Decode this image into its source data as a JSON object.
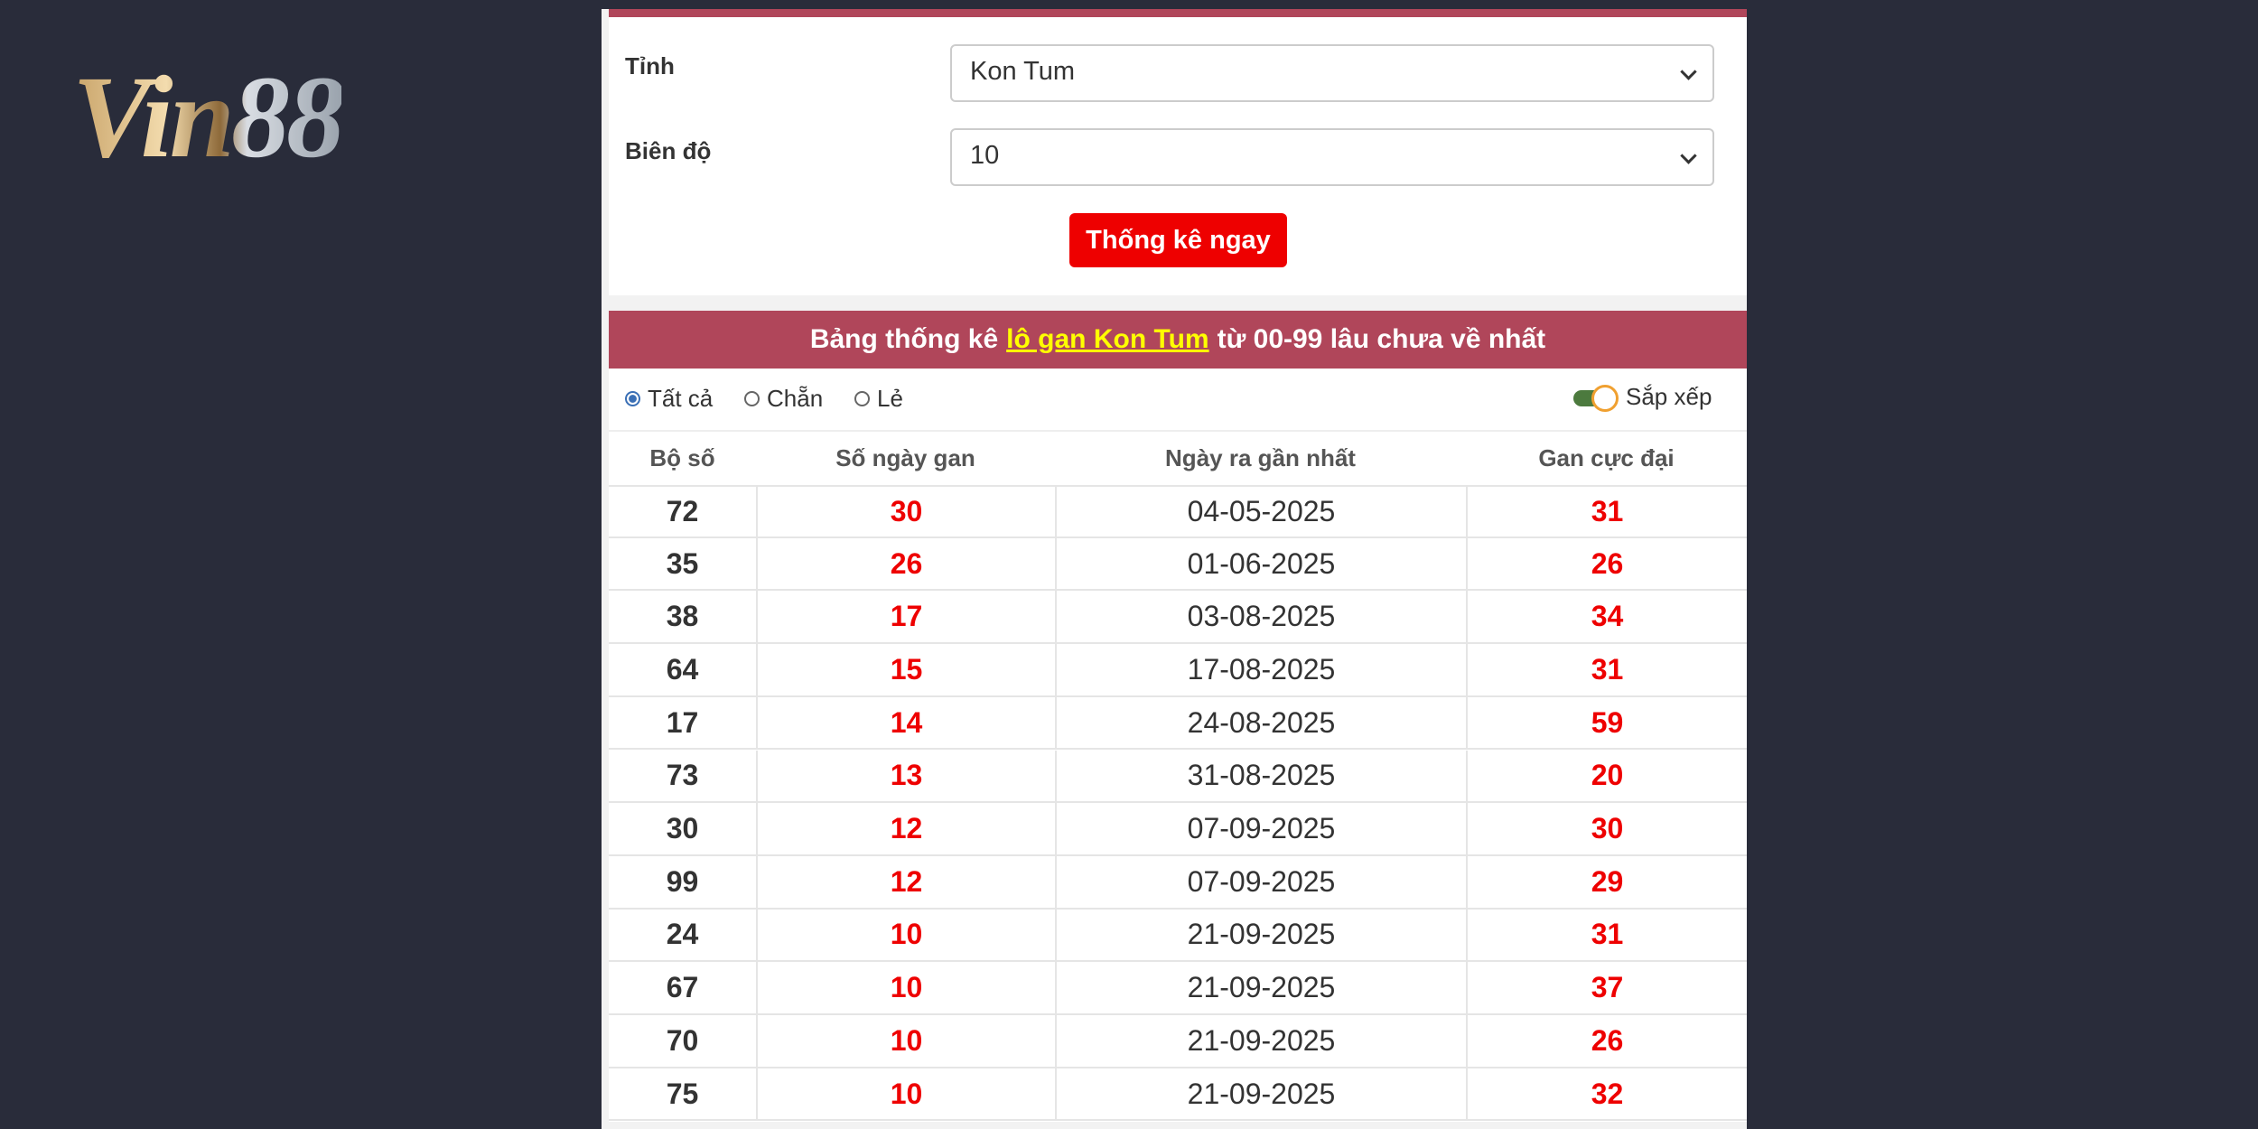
{
  "logo": "Vin88",
  "form": {
    "fields": [
      {
        "label": "Tỉnh",
        "value": "Kon Tum"
      },
      {
        "label": "Biên độ",
        "value": "10"
      }
    ],
    "button": "Thống kê ngay"
  },
  "table": {
    "title": {
      "before": "Bảng thống kê",
      "link": "lô gan Kon Tum",
      "after": "từ 00-99 lâu chưa về nhất"
    },
    "filters": [
      "Tất cả",
      "Chẵn",
      "Lẻ"
    ],
    "sort": "Sắp xếp",
    "columns": [
      "Bộ số",
      "Số ngày gan",
      "Ngày ra gần nhất",
      "Gan cực đại"
    ],
    "rows": [
      [
        "72",
        "30",
        "04-05-2025",
        "31"
      ],
      [
        "35",
        "26",
        "01-06-2025",
        "26"
      ],
      [
        "38",
        "17",
        "03-08-2025",
        "34"
      ],
      [
        "64",
        "15",
        "17-08-2025",
        "31"
      ],
      [
        "17",
        "14",
        "24-08-2025",
        "59"
      ],
      [
        "73",
        "13",
        "31-08-2025",
        "20"
      ],
      [
        "30",
        "12",
        "07-09-2025",
        "30"
      ],
      [
        "99",
        "12",
        "07-09-2025",
        "29"
      ],
      [
        "24",
        "10",
        "21-09-2025",
        "31"
      ],
      [
        "67",
        "10",
        "21-09-2025",
        "37"
      ],
      [
        "70",
        "10",
        "21-09-2025",
        "26"
      ],
      [
        "75",
        "10",
        "21-09-2025",
        "32"
      ]
    ]
  }
}
